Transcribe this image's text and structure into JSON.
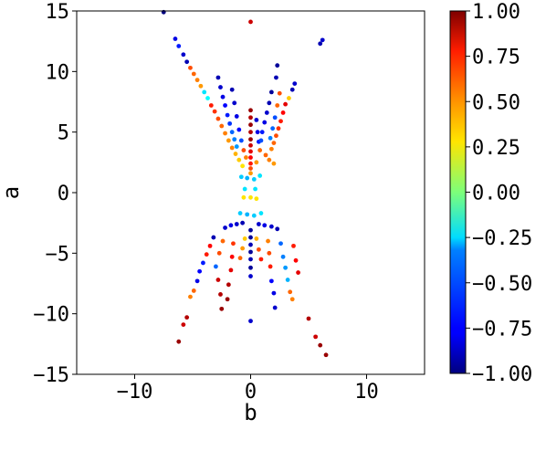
{
  "chart_data": {
    "type": "scatter",
    "title": "",
    "xlabel": "b",
    "ylabel": "a",
    "xlim": [
      -15,
      15
    ],
    "ylim": [
      -15,
      15
    ],
    "x_ticks": [
      -10,
      0,
      10
    ],
    "x_tick_labels": [
      "−10",
      "0",
      "10"
    ],
    "y_ticks": [
      -15,
      -10,
      -5,
      0,
      5,
      10,
      15
    ],
    "y_tick_labels": [
      "−15",
      "−10",
      "−5",
      "0",
      "5",
      "10",
      "15"
    ],
    "grid": false,
    "legend": "none",
    "colorbar": {
      "colormap": "jet",
      "range": [
        -1.0,
        1.0
      ],
      "ticks": [
        1.0,
        0.75,
        0.5,
        0.25,
        0.0,
        -0.25,
        -0.5,
        -0.75,
        -1.0
      ],
      "tick_labels": [
        "1.00",
        "0.75",
        "0.50",
        "0.25",
        "0.00",
        "−0.25",
        "−0.50",
        "−0.75",
        "−1.00"
      ]
    },
    "points": [
      {
        "x": -7.5,
        "y": 14.9,
        "c": -1.0
      },
      {
        "x": -6.5,
        "y": 12.7,
        "c": -0.8
      },
      {
        "x": -6.2,
        "y": 12.1,
        "c": -0.7
      },
      {
        "x": -5.8,
        "y": 11.4,
        "c": -0.85
      },
      {
        "x": -5.5,
        "y": 10.8,
        "c": -0.9
      },
      {
        "x": -5.2,
        "y": 10.3,
        "c": 0.6
      },
      {
        "x": -4.9,
        "y": 9.8,
        "c": 0.55
      },
      {
        "x": -4.6,
        "y": 9.3,
        "c": 0.5
      },
      {
        "x": -4.3,
        "y": 8.8,
        "c": 0.45
      },
      {
        "x": -4.0,
        "y": 8.3,
        "c": -0.3
      },
      {
        "x": -3.7,
        "y": 7.8,
        "c": -0.25
      },
      {
        "x": -3.4,
        "y": 7.2,
        "c": 0.7
      },
      {
        "x": -3.1,
        "y": 6.7,
        "c": 0.65
      },
      {
        "x": -2.8,
        "y": 6.1,
        "c": 0.6
      },
      {
        "x": -2.5,
        "y": 5.5,
        "c": 0.55
      },
      {
        "x": -2.2,
        "y": 4.9,
        "c": 0.5
      },
      {
        "x": -1.9,
        "y": 4.3,
        "c": 0.45
      },
      {
        "x": -1.6,
        "y": 3.7,
        "c": 0.5
      },
      {
        "x": -1.3,
        "y": 3.2,
        "c": 0.4
      },
      {
        "x": -1.0,
        "y": 2.7,
        "c": 0.35
      },
      {
        "x": -0.7,
        "y": 2.2,
        "c": 0.3
      },
      {
        "x": -2.8,
        "y": 9.5,
        "c": -0.9
      },
      {
        "x": -2.6,
        "y": 8.7,
        "c": -0.85
      },
      {
        "x": -2.4,
        "y": 7.9,
        "c": -0.8
      },
      {
        "x": -2.2,
        "y": 7.2,
        "c": -0.75
      },
      {
        "x": -2.0,
        "y": 6.4,
        "c": -0.7
      },
      {
        "x": -1.8,
        "y": 5.7,
        "c": -0.65
      },
      {
        "x": -1.6,
        "y": 5.0,
        "c": -0.55
      },
      {
        "x": -1.4,
        "y": 4.4,
        "c": -0.5
      },
      {
        "x": -1.2,
        "y": 3.8,
        "c": -0.45
      },
      {
        "x": -1.6,
        "y": 8.5,
        "c": -0.9
      },
      {
        "x": -1.4,
        "y": 7.4,
        "c": -0.85
      },
      {
        "x": -1.2,
        "y": 6.3,
        "c": -0.8
      },
      {
        "x": -1.0,
        "y": 5.2,
        "c": -0.75
      },
      {
        "x": -0.8,
        "y": 4.3,
        "c": -0.6
      },
      {
        "x": -0.6,
        "y": 3.5,
        "c": 0.6
      },
      {
        "x": -0.4,
        "y": 2.9,
        "c": 0.5
      },
      {
        "x": 0.0,
        "y": 14.1,
        "c": 0.85
      },
      {
        "x": 0.0,
        "y": 6.8,
        "c": 0.95
      },
      {
        "x": 0.0,
        "y": 6.2,
        "c": 0.9
      },
      {
        "x": 0.0,
        "y": 5.6,
        "c": 0.95
      },
      {
        "x": 0.0,
        "y": 5.0,
        "c": 0.9
      },
      {
        "x": 0.0,
        "y": 4.4,
        "c": 0.95
      },
      {
        "x": 0.0,
        "y": 3.9,
        "c": 0.85
      },
      {
        "x": 0.0,
        "y": 3.4,
        "c": 0.8
      },
      {
        "x": 0.0,
        "y": 2.9,
        "c": 0.75
      },
      {
        "x": 0.0,
        "y": 2.4,
        "c": 0.7
      },
      {
        "x": 0.0,
        "y": 2.0,
        "c": 0.6
      },
      {
        "x": 0.0,
        "y": 1.6,
        "c": 0.45
      },
      {
        "x": 0.5,
        "y": 6.0,
        "c": -0.85
      },
      {
        "x": 0.6,
        "y": 5.0,
        "c": -0.8
      },
      {
        "x": 0.7,
        "y": 4.2,
        "c": -0.7
      },
      {
        "x": 0.8,
        "y": 3.5,
        "c": 0.55
      },
      {
        "x": 0.5,
        "y": 2.5,
        "c": 0.45
      },
      {
        "x": 1.8,
        "y": 8.3,
        "c": -0.95
      },
      {
        "x": 1.6,
        "y": 7.4,
        "c": -0.9
      },
      {
        "x": 1.4,
        "y": 6.6,
        "c": -0.85
      },
      {
        "x": 1.2,
        "y": 5.8,
        "c": -0.8
      },
      {
        "x": 1.0,
        "y": 5.0,
        "c": -0.7
      },
      {
        "x": 0.9,
        "y": 4.3,
        "c": -0.6
      },
      {
        "x": 1.3,
        "y": 3.1,
        "c": 0.55
      },
      {
        "x": 1.6,
        "y": 2.7,
        "c": 0.5
      },
      {
        "x": 2.0,
        "y": 2.4,
        "c": 0.45
      },
      {
        "x": 2.3,
        "y": 10.5,
        "c": -0.95
      },
      {
        "x": 2.2,
        "y": 9.5,
        "c": -0.9
      },
      {
        "x": 2.5,
        "y": 8.2,
        "c": 0.6
      },
      {
        "x": 2.3,
        "y": 7.2,
        "c": 0.55
      },
      {
        "x": 2.1,
        "y": 6.2,
        "c": -0.6
      },
      {
        "x": 1.9,
        "y": 5.3,
        "c": -0.55
      },
      {
        "x": 1.7,
        "y": 4.5,
        "c": -0.5
      },
      {
        "x": 3.0,
        "y": 7.3,
        "c": 0.8
      },
      {
        "x": 2.8,
        "y": 6.6,
        "c": 0.75
      },
      {
        "x": 2.6,
        "y": 5.9,
        "c": 0.7
      },
      {
        "x": 2.4,
        "y": 5.3,
        "c": 0.65
      },
      {
        "x": 2.2,
        "y": 4.7,
        "c": 0.6
      },
      {
        "x": 2.0,
        "y": 4.1,
        "c": 0.55
      },
      {
        "x": 1.8,
        "y": 3.6,
        "c": 0.5
      },
      {
        "x": 3.6,
        "y": 8.5,
        "c": -0.9
      },
      {
        "x": 3.3,
        "y": 7.8,
        "c": 0.35
      },
      {
        "x": 3.8,
        "y": 9.0,
        "c": -0.85
      },
      {
        "x": 6.0,
        "y": 12.3,
        "c": -0.9
      },
      {
        "x": 6.2,
        "y": 12.6,
        "c": -0.85
      },
      {
        "x": -0.8,
        "y": 1.3,
        "c": -0.35
      },
      {
        "x": -0.3,
        "y": 1.2,
        "c": -0.4
      },
      {
        "x": 0.3,
        "y": 1.1,
        "c": -0.35
      },
      {
        "x": 0.8,
        "y": 1.4,
        "c": -0.3
      },
      {
        "x": -0.5,
        "y": 0.3,
        "c": -0.3
      },
      {
        "x": 0.4,
        "y": 0.3,
        "c": -0.3
      },
      {
        "x": -0.6,
        "y": -0.4,
        "c": 0.3
      },
      {
        "x": 0.0,
        "y": -0.4,
        "c": 0.3
      },
      {
        "x": 0.5,
        "y": -0.5,
        "c": 0.3
      },
      {
        "x": -0.9,
        "y": -1.7,
        "c": -0.35
      },
      {
        "x": -0.3,
        "y": -1.8,
        "c": -0.4
      },
      {
        "x": 0.3,
        "y": -1.9,
        "c": -0.35
      },
      {
        "x": 0.9,
        "y": -1.7,
        "c": -0.3
      },
      {
        "x": -2.2,
        "y": -2.9,
        "c": -0.85
      },
      {
        "x": -1.7,
        "y": -2.7,
        "c": -0.8
      },
      {
        "x": -1.2,
        "y": -2.6,
        "c": -0.85
      },
      {
        "x": -0.7,
        "y": -2.5,
        "c": -0.9
      },
      {
        "x": 0.7,
        "y": -2.6,
        "c": -0.85
      },
      {
        "x": 1.2,
        "y": -2.7,
        "c": -0.8
      },
      {
        "x": 1.8,
        "y": -2.8,
        "c": -0.85
      },
      {
        "x": 2.3,
        "y": -3.0,
        "c": -0.9
      },
      {
        "x": 0.0,
        "y": -3.1,
        "c": -0.95
      },
      {
        "x": 0.0,
        "y": -3.7,
        "c": -0.95
      },
      {
        "x": 0.0,
        "y": -4.3,
        "c": -0.9
      },
      {
        "x": 0.0,
        "y": -4.9,
        "c": -0.95
      },
      {
        "x": 0.0,
        "y": -5.5,
        "c": -0.9
      },
      {
        "x": 0.0,
        "y": -6.2,
        "c": -0.95
      },
      {
        "x": 0.0,
        "y": -6.9,
        "c": -0.85
      },
      {
        "x": 0.0,
        "y": -10.6,
        "c": -0.85
      },
      {
        "x": -0.5,
        "y": -3.8,
        "c": 0.35
      },
      {
        "x": -0.7,
        "y": -4.6,
        "c": 0.45
      },
      {
        "x": -0.9,
        "y": -5.4,
        "c": 0.55
      },
      {
        "x": 0.5,
        "y": -3.8,
        "c": 0.4
      },
      {
        "x": 0.7,
        "y": -4.7,
        "c": 0.6
      },
      {
        "x": 0.9,
        "y": -5.5,
        "c": 0.7
      },
      {
        "x": -3.2,
        "y": -3.7,
        "c": -0.9
      },
      {
        "x": -3.5,
        "y": -4.4,
        "c": 0.75
      },
      {
        "x": -3.8,
        "y": -5.1,
        "c": 0.7
      },
      {
        "x": -4.1,
        "y": -5.8,
        "c": -0.7
      },
      {
        "x": -4.4,
        "y": -6.5,
        "c": -0.75
      },
      {
        "x": -4.6,
        "y": -7.3,
        "c": -0.8
      },
      {
        "x": -4.9,
        "y": -8.1,
        "c": 0.55
      },
      {
        "x": -5.2,
        "y": -8.6,
        "c": 0.5
      },
      {
        "x": -5.5,
        "y": -10.3,
        "c": 0.9
      },
      {
        "x": -5.8,
        "y": -10.9,
        "c": 0.85
      },
      {
        "x": -6.2,
        "y": -12.3,
        "c": 0.95
      },
      {
        "x": -2.4,
        "y": -4.0,
        "c": 0.55
      },
      {
        "x": -2.7,
        "y": -5.0,
        "c": 0.6
      },
      {
        "x": -3.0,
        "y": -6.1,
        "c": -0.55
      },
      {
        "x": -2.8,
        "y": -7.2,
        "c": 0.85
      },
      {
        "x": -2.6,
        "y": -8.4,
        "c": 0.9
      },
      {
        "x": -2.5,
        "y": -9.6,
        "c": 0.95
      },
      {
        "x": -1.5,
        "y": -4.2,
        "c": 0.65
      },
      {
        "x": -1.6,
        "y": -5.3,
        "c": 0.75
      },
      {
        "x": -1.7,
        "y": -6.4,
        "c": 0.8
      },
      {
        "x": -1.9,
        "y": -7.6,
        "c": 0.9
      },
      {
        "x": -2.0,
        "y": -8.8,
        "c": 0.95
      },
      {
        "x": 1.5,
        "y": -4.0,
        "c": 0.5
      },
      {
        "x": 1.6,
        "y": -5.0,
        "c": 0.6
      },
      {
        "x": 1.7,
        "y": -6.1,
        "c": 0.7
      },
      {
        "x": 1.8,
        "y": -7.3,
        "c": -0.75
      },
      {
        "x": 2.0,
        "y": -8.3,
        "c": -0.8
      },
      {
        "x": 2.1,
        "y": -9.5,
        "c": -0.85
      },
      {
        "x": 2.6,
        "y": -4.2,
        "c": -0.55
      },
      {
        "x": 2.8,
        "y": -5.3,
        "c": -0.5
      },
      {
        "x": 3.0,
        "y": -6.2,
        "c": -0.45
      },
      {
        "x": 3.2,
        "y": -7.2,
        "c": -0.4
      },
      {
        "x": 3.4,
        "y": -8.2,
        "c": 0.55
      },
      {
        "x": 3.6,
        "y": -8.8,
        "c": 0.5
      },
      {
        "x": 3.7,
        "y": -4.4,
        "c": 0.7
      },
      {
        "x": 3.9,
        "y": -5.6,
        "c": 0.75
      },
      {
        "x": 4.1,
        "y": -6.6,
        "c": 0.8
      },
      {
        "x": 5.0,
        "y": -10.4,
        "c": 0.9
      },
      {
        "x": 5.6,
        "y": -11.9,
        "c": 0.85
      },
      {
        "x": 6.0,
        "y": -12.6,
        "c": 0.95
      },
      {
        "x": 6.5,
        "y": -13.4,
        "c": 0.95
      }
    ]
  }
}
